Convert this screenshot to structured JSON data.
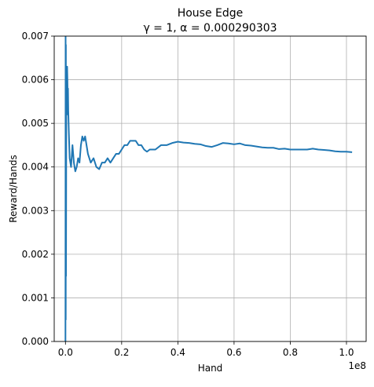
{
  "chart_data": {
    "type": "line",
    "title": "House Edge",
    "subtitle": "γ = 1, α = 0.000290303",
    "xlabel": "Hand",
    "ylabel": "Reward/Hands",
    "x_offset_label": "1e8",
    "xlim": [
      -0.04,
      1.07
    ],
    "ylim": [
      0.0,
      0.007
    ],
    "xticks": [
      0.0,
      0.2,
      0.4,
      0.6,
      0.8,
      1.0
    ],
    "xtick_labels": [
      "0.0",
      "0.2",
      "0.4",
      "0.6",
      "0.8",
      "1.0"
    ],
    "yticks": [
      0.0,
      0.001,
      0.002,
      0.003,
      0.004,
      0.005,
      0.006,
      0.007
    ],
    "ytick_labels": [
      "0.000",
      "0.001",
      "0.002",
      "0.003",
      "0.004",
      "0.005",
      "0.006",
      "0.007"
    ],
    "grid": true,
    "legend": "none",
    "color": "#1f77b4",
    "series": [
      {
        "x": [
          0.0,
          0.0005,
          0.001,
          0.0015,
          0.002,
          0.003,
          0.004,
          0.005,
          0.006,
          0.007,
          0.008,
          0.009,
          0.01,
          0.012,
          0.015,
          0.02,
          0.025,
          0.03,
          0.035,
          0.04,
          0.045,
          0.05,
          0.055,
          0.06,
          0.065,
          0.07,
          0.075,
          0.08,
          0.09,
          0.1,
          0.11,
          0.12,
          0.13,
          0.14,
          0.15,
          0.16,
          0.17,
          0.18,
          0.19,
          0.2,
          0.21,
          0.22,
          0.23,
          0.24,
          0.25,
          0.26,
          0.27,
          0.28,
          0.29,
          0.3,
          0.32,
          0.34,
          0.36,
          0.38,
          0.4,
          0.42,
          0.44,
          0.46,
          0.48,
          0.5,
          0.52,
          0.54,
          0.56,
          0.58,
          0.6,
          0.62,
          0.64,
          0.66,
          0.68,
          0.7,
          0.72,
          0.74,
          0.76,
          0.78,
          0.8,
          0.82,
          0.84,
          0.86,
          0.88,
          0.9,
          0.92,
          0.94,
          0.96,
          0.98,
          1.0,
          1.02
        ],
        "y": [
          0.0,
          0.007,
          0.0005,
          0.0068,
          0.0015,
          0.0055,
          0.0062,
          0.0052,
          0.0063,
          0.006,
          0.0056,
          0.0058,
          0.0053,
          0.0048,
          0.0042,
          0.004,
          0.0045,
          0.0041,
          0.0039,
          0.004,
          0.0042,
          0.0041,
          0.0045,
          0.0047,
          0.0046,
          0.0047,
          0.0045,
          0.0043,
          0.0041,
          0.0042,
          0.004,
          0.00395,
          0.0041,
          0.0041,
          0.0042,
          0.0041,
          0.0042,
          0.0043,
          0.0043,
          0.0044,
          0.0045,
          0.0045,
          0.0046,
          0.0046,
          0.0046,
          0.0045,
          0.0045,
          0.0044,
          0.00435,
          0.0044,
          0.0044,
          0.0045,
          0.0045,
          0.00455,
          0.00458,
          0.00456,
          0.00455,
          0.00453,
          0.00452,
          0.00448,
          0.00446,
          0.0045,
          0.00455,
          0.00454,
          0.00452,
          0.00454,
          0.0045,
          0.00449,
          0.00447,
          0.00445,
          0.00444,
          0.00444,
          0.00441,
          0.00442,
          0.0044,
          0.0044,
          0.0044,
          0.0044,
          0.00442,
          0.0044,
          0.00439,
          0.00438,
          0.00436,
          0.00435,
          0.00435,
          0.00434
        ]
      }
    ]
  }
}
